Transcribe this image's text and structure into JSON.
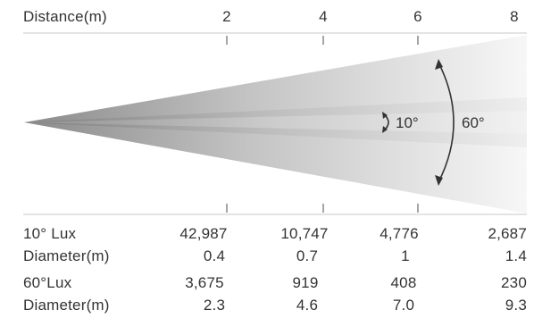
{
  "header": {
    "distance_label": "Distance(m)",
    "ticks": [
      "2",
      "4",
      "6",
      "8"
    ]
  },
  "beam": {
    "narrow_angle": "10°",
    "wide_angle": "60°"
  },
  "table": {
    "rows": [
      {
        "label": "10°  Lux",
        "values": [
          "42,987",
          "10,747",
          "4,776",
          "2,687"
        ]
      },
      {
        "label": "Diameter(m)",
        "values": [
          "0.4",
          "0.7",
          "1",
          "1.4"
        ]
      },
      {
        "label": "60°Lux",
        "values": [
          "3,675",
          "919",
          "408",
          "230"
        ]
      },
      {
        "label": "Diameter(m)",
        "values": [
          "2.3",
          "4.6",
          "7.0",
          "9.3"
        ]
      }
    ]
  }
}
